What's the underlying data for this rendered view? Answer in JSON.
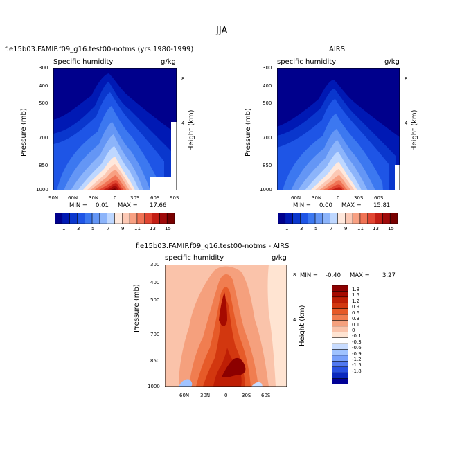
{
  "figure": {
    "title": "JJA",
    "left_title": "f.e15b03.FAMIP.f09_g16.test00-notms (yrs 1980-1999)",
    "right_title": "AIRS",
    "bottom_title": "f.e15b03.FAMIP.f09_g16.test00-notms - AIRS"
  },
  "panels": {
    "left": {
      "var_label": "Specific humidity",
      "units": "g/kg",
      "min_label": "MIN =",
      "min_value": "0.01",
      "max_label": "MAX =",
      "max_value": "17.66"
    },
    "right": {
      "var_label": "specific humidity",
      "units": "g/kg",
      "min_label": "MIN =",
      "min_value": "0.00",
      "max_label": "MAX =",
      "max_value": "15.81"
    },
    "diff": {
      "var_label": "specific humidity",
      "units": "g/kg",
      "min_label": "MIN =",
      "min_value": "-0.40",
      "max_label": "MAX =",
      "max_value": "3.27"
    }
  },
  "axes": {
    "ylabel": "Pressure (mb)",
    "y2label": "Height (km)",
    "pressure_ticks": [
      "300",
      "400",
      "500",
      "700",
      "850",
      "1000"
    ],
    "height_ticks": [
      "8",
      "4"
    ],
    "lat_ticks_left": [
      "90N",
      "60N",
      "30N",
      "0",
      "30S",
      "60S",
      "90S"
    ],
    "lat_ticks_inner": [
      "60N",
      "30N",
      "0",
      "30S",
      "60S"
    ]
  },
  "colorbars": {
    "abs_labels": [
      "1",
      "3",
      "5",
      "7",
      "9",
      "11",
      "13",
      "15"
    ],
    "diff_labels": [
      "1.8",
      "1.5",
      "1.2",
      "0.9",
      "0.6",
      "0.3",
      "0.1",
      "0",
      "-0.1",
      "-0.3",
      "-0.6",
      "-0.9",
      "-1.2",
      "-1.5",
      "-1.8"
    ]
  },
  "colors": {
    "abs_palette": [
      "#00008c",
      "#0019b4",
      "#0a37cd",
      "#1e55e6",
      "#3c78f0",
      "#6496f5",
      "#8cb4fa",
      "#bed7ff",
      "#ffe8dc",
      "#fcc8b4",
      "#f8a082",
      "#f07355",
      "#e14632",
      "#c31e14",
      "#a00a0a",
      "#780000"
    ],
    "diff_palette": [
      "#8c0000",
      "#a50a00",
      "#be1e05",
      "#d2370f",
      "#e65a28",
      "#f07d50",
      "#f5a07d",
      "#fac3aa",
      "#ffe4d2",
      "#ffffff",
      "#c8dcff",
      "#a0c3ff",
      "#78a0fa",
      "#5078f0",
      "#2850e1",
      "#0a28be",
      "#000096"
    ]
  },
  "chart_data": [
    {
      "type": "heatmap",
      "title": "f.e15b03.FAMIP.f09_g16.test00-notms (yrs 1980-1999)",
      "subtitle": "Specific humidity",
      "units": "g/kg",
      "xlabel": "",
      "ylabel": "Pressure (mb)",
      "y2label": "Height (km)",
      "x": [
        "90N",
        "60N",
        "30N",
        "0",
        "30S",
        "60S",
        "90S"
      ],
      "y_pressure_mb": [
        300,
        400,
        500,
        700,
        850,
        1000
      ],
      "contour_levels": [
        1,
        2,
        3,
        4,
        5,
        6,
        7,
        8,
        9,
        10,
        11,
        12,
        13,
        14,
        15,
        16
      ],
      "min": 0.01,
      "max": 17.66,
      "description_values": {
        "peak_location": "about 10N near 1000 mb",
        "peak_value": 17.66
      }
    },
    {
      "type": "heatmap",
      "title": "AIRS",
      "subtitle": "specific humidity",
      "units": "g/kg",
      "xlabel": "",
      "ylabel": "Pressure (mb)",
      "y2label": "Height (km)",
      "x": [
        "60N",
        "30N",
        "0",
        "30S",
        "60S"
      ],
      "y_pressure_mb": [
        300,
        400,
        500,
        700,
        850,
        1000
      ],
      "contour_levels": [
        1,
        2,
        3,
        4,
        5,
        6,
        7,
        8,
        9,
        10,
        11,
        12,
        13,
        14,
        15,
        16
      ],
      "min": 0.0,
      "max": 15.81
    },
    {
      "type": "heatmap",
      "title": "f.e15b03.FAMIP.f09_g16.test00-notms - AIRS",
      "subtitle": "specific humidity",
      "units": "g/kg",
      "xlabel": "",
      "ylabel": "Pressure (mb)",
      "y2label": "Height (km)",
      "x": [
        "60N",
        "30N",
        "0",
        "30S",
        "60S"
      ],
      "y_pressure_mb": [
        300,
        400,
        500,
        700,
        850,
        1000
      ],
      "contour_levels": [
        -1.8,
        -1.5,
        -1.2,
        -0.9,
        -0.6,
        -0.3,
        -0.1,
        0,
        0.1,
        0.3,
        0.6,
        0.9,
        1.2,
        1.5,
        1.8
      ],
      "min": -0.4,
      "max": 3.27
    }
  ]
}
